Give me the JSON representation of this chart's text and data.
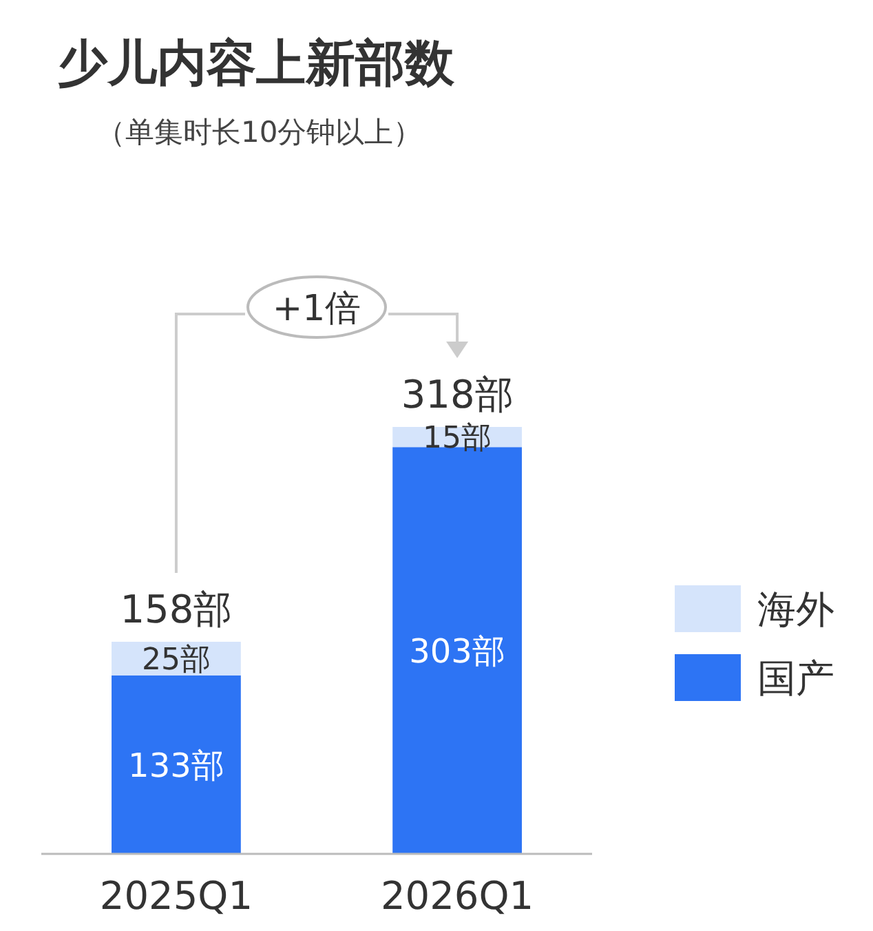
{
  "chart_data": {
    "type": "bar",
    "title": "少儿内容上新部数",
    "subtitle": "（单集时长10分钟以上）",
    "categories": [
      "2025Q1",
      "2026Q1"
    ],
    "stacked": true,
    "series": [
      {
        "name": "国产",
        "color": "#2d74f4",
        "values": [
          133,
          303
        ],
        "value_labels": [
          "133部",
          "303部"
        ]
      },
      {
        "name": "海外",
        "color": "#d5e4fb",
        "values": [
          25,
          15
        ],
        "value_labels": [
          "25部",
          "15部"
        ]
      }
    ],
    "totals": [
      "158部",
      "318部"
    ],
    "annotations": [
      "+1倍"
    ],
    "legend": "right"
  }
}
